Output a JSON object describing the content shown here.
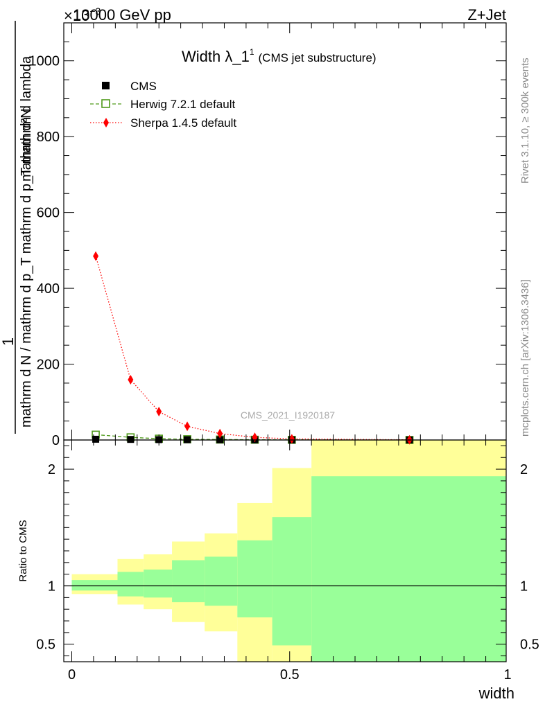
{
  "header": {
    "left": "13000 GeV pp",
    "right": "Z+Jet",
    "exponent_prefix": "×10",
    "exponent_power": "−3"
  },
  "side_text": {
    "rivet": "Rivet 3.1.10, ≥ 300k events",
    "mcplots": "mcplots.cern.ch [arXiv:1306.3436]"
  },
  "watermark": "CMS_2021_I1920187",
  "chart_data": [
    {
      "type": "line",
      "title": "Width λ_1",
      "title_sup": "1",
      "subtitle": "(CMS jet substructure)",
      "ylabel_line1": "1",
      "ylabel_den": "mathrm d N / mathrm d p_T mathrm d p_T mathrm d lambda",
      "ylabel_num": "mathrm d²N",
      "ylim": [
        0,
        1100
      ],
      "yticks": [
        0,
        200,
        400,
        600,
        800,
        1000
      ],
      "ytick_labels": [
        "0",
        "200",
        "400",
        "600",
        "800",
        "1000"
      ],
      "xlim": [
        0,
        1
      ],
      "legend": [
        {
          "name": "CMS",
          "color": "#000000"
        },
        {
          "name": "Herwig 7.2.1 default",
          "color": "#4f9a1b"
        },
        {
          "name": "Sherpa 1.4.5 default",
          "color": "#ff0000"
        }
      ],
      "series": [
        {
          "name": "CMS",
          "x": [
            0.055,
            0.135,
            0.2,
            0.265,
            0.34,
            0.42,
            0.505,
            0.775
          ],
          "y": [
            2.0,
            1.5,
            1.0,
            0.8,
            0.6,
            0.4,
            0.2,
            0.1
          ]
        },
        {
          "name": "Herwig 7.2.1 default",
          "x": [
            0.055,
            0.135,
            0.2,
            0.265,
            0.34,
            0.42,
            0.505,
            0.775
          ],
          "y": [
            14,
            7,
            3.5,
            2.0,
            1.2,
            0.7,
            0.4,
            0.1
          ]
        },
        {
          "name": "Sherpa 1.4.5 default",
          "x": [
            0.055,
            0.135,
            0.2,
            0.265,
            0.34,
            0.42,
            0.505,
            0.775
          ],
          "y": [
            485,
            159,
            75,
            36,
            17,
            7,
            3,
            0.5
          ]
        }
      ]
    },
    {
      "type": "area",
      "ylabel": "Ratio to CMS",
      "xlabel": "width",
      "xlim": [
        0,
        1
      ],
      "ylim": [
        0.35,
        2.25
      ],
      "xticks": [
        0,
        0.5,
        1
      ],
      "xtick_labels": [
        "0",
        "0.5",
        "1"
      ],
      "yticks": [
        0.5,
        1,
        2
      ],
      "ytick_labels": [
        "0.5",
        "1",
        "2"
      ],
      "reference_line": 1,
      "bins": [
        {
          "x0": 0.0,
          "x1": 0.105,
          "stat_lo": 0.96,
          "stat_hi": 1.05,
          "tot_lo": 0.93,
          "tot_hi": 1.1
        },
        {
          "x0": 0.105,
          "x1": 0.165,
          "stat_lo": 0.91,
          "stat_hi": 1.12,
          "tot_lo": 0.84,
          "tot_hi": 1.23
        },
        {
          "x0": 0.165,
          "x1": 0.23,
          "stat_lo": 0.9,
          "stat_hi": 1.14,
          "tot_lo": 0.8,
          "tot_hi": 1.27
        },
        {
          "x0": 0.23,
          "x1": 0.305,
          "stat_lo": 0.86,
          "stat_hi": 1.22,
          "tot_lo": 0.69,
          "tot_hi": 1.38
        },
        {
          "x0": 0.305,
          "x1": 0.38,
          "stat_lo": 0.83,
          "stat_hi": 1.25,
          "tot_lo": 0.61,
          "tot_hi": 1.45
        },
        {
          "x0": 0.38,
          "x1": 0.46,
          "stat_lo": 0.73,
          "stat_hi": 1.39,
          "tot_lo": 0.35,
          "tot_hi": 1.71
        },
        {
          "x0": 0.46,
          "x1": 0.55,
          "stat_lo": 0.49,
          "stat_hi": 1.59,
          "tot_lo": 0.35,
          "tot_hi": 2.01
        },
        {
          "x0": 0.55,
          "x1": 1.0,
          "stat_lo": 0.35,
          "stat_hi": 1.94,
          "tot_lo": 0.35,
          "tot_hi": 2.25
        }
      ]
    }
  ]
}
